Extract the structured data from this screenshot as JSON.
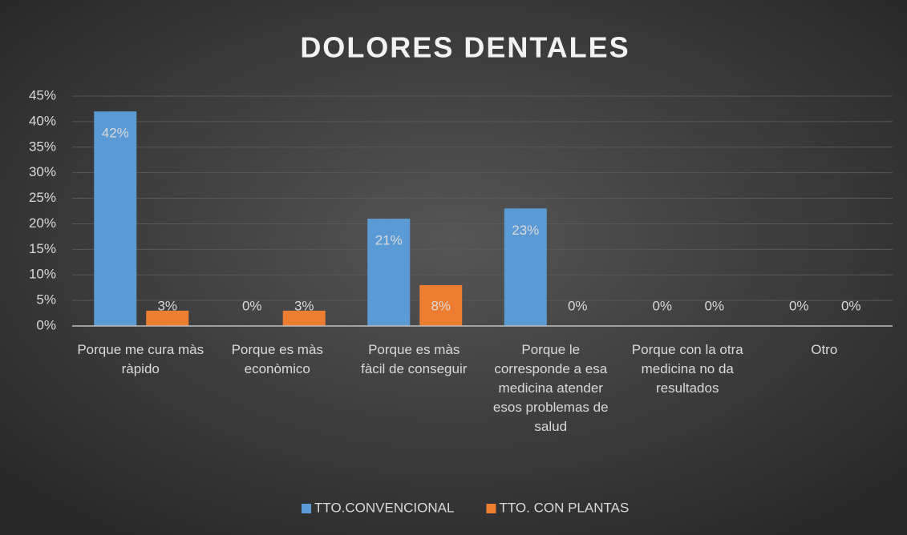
{
  "chart_data": {
    "type": "bar",
    "title": "DOLORES DENTALES",
    "categories": [
      "Porque me cura màs ràpido",
      "Porque es màs econòmico",
      "Porque es màs fàcil de conseguir",
      "Porque le corresponde a esa medicina atender esos problemas de salud",
      "Porque con la otra medicina no da resultados",
      "Otro"
    ],
    "series": [
      {
        "name": "TTO.CONVENCIONAL",
        "color": "#5b9bd5",
        "values": [
          42,
          0,
          21,
          23,
          0,
          0
        ],
        "value_labels": [
          "42%",
          "0%",
          "21%",
          "23%",
          "0%",
          "0%"
        ]
      },
      {
        "name": "TTO. CON PLANTAS",
        "color": "#ed7d31",
        "values": [
          3,
          3,
          8,
          0,
          0,
          0
        ],
        "value_labels": [
          "3%",
          "3%",
          "8%",
          "0%",
          "0%",
          "0%"
        ]
      }
    ],
    "ylim": [
      0,
      45
    ],
    "yticks": [
      {
        "value": 0,
        "label": "0%"
      },
      {
        "value": 5,
        "label": "5%"
      },
      {
        "value": 10,
        "label": "10%"
      },
      {
        "value": 15,
        "label": "15%"
      },
      {
        "value": 20,
        "label": "20%"
      },
      {
        "value": 25,
        "label": "25%"
      },
      {
        "value": 30,
        "label": "30%"
      },
      {
        "value": 35,
        "label": "35%"
      },
      {
        "value": 40,
        "label": "40%"
      },
      {
        "value": 45,
        "label": "45%"
      }
    ],
    "grid": true,
    "legend": "bottom"
  }
}
